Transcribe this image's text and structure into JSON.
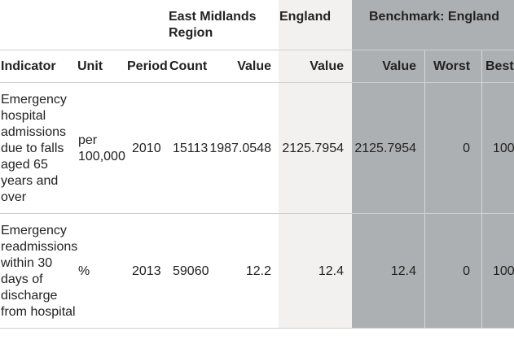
{
  "group_headers": {
    "region": "East Midlands Region",
    "england": "England",
    "benchmark": "Benchmark: England"
  },
  "columns": {
    "indicator": "Indicator",
    "unit": "Unit",
    "period": "Period",
    "count": "Count",
    "value_region": "Value",
    "value_england": "Value",
    "value_benchmark": "Value",
    "worst": "Worst",
    "best": "Best"
  },
  "rows": [
    {
      "indicator": "Emergency hospital admissions due to falls aged 65 years and over",
      "unit": "per 100,000",
      "period": "2010",
      "count": "15113",
      "value_region": "1987.0548",
      "value_england": "2125.7954",
      "value_benchmark": "2125.7954",
      "worst": "0",
      "best": "100"
    },
    {
      "indicator": "Emergency readmissions within 30 days of discharge from hospital",
      "unit": "%",
      "period": "2013",
      "count": "59060",
      "value_region": "12.2",
      "value_england": "12.4",
      "value_benchmark": "12.4",
      "worst": "0",
      "best": "100"
    }
  ],
  "colors": {
    "england_column_bg": "#f2f1ef",
    "benchmark_column_bg": "#adb0b2"
  }
}
